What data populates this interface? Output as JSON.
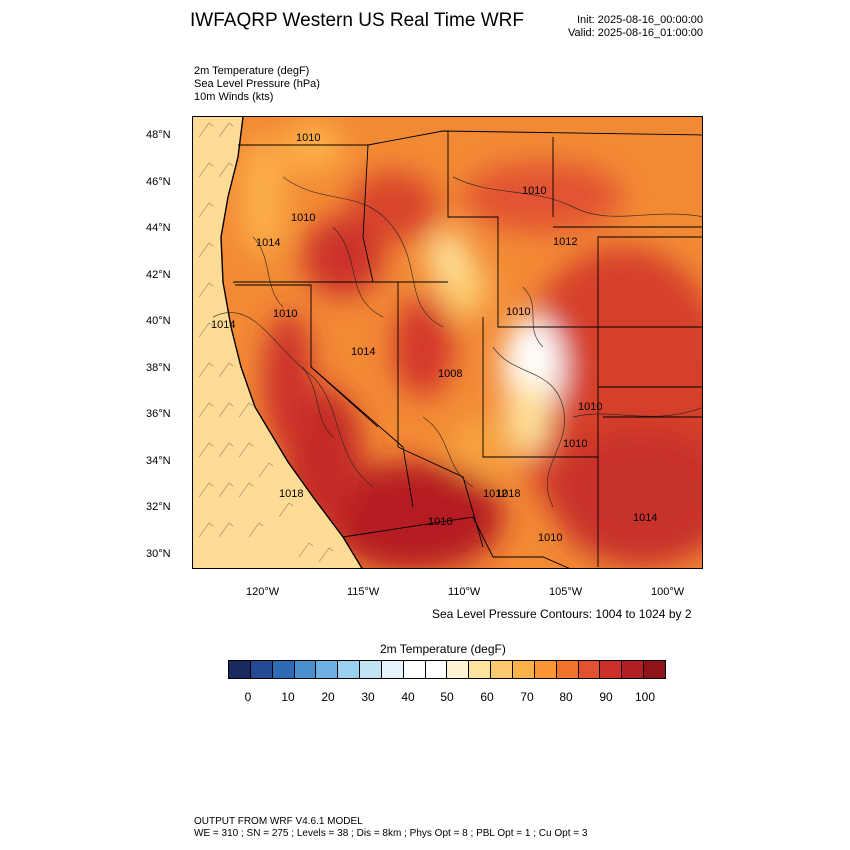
{
  "header": {
    "title": "IWFAQRP Western US Real Time WRF",
    "init": "Init: 2025-08-16_00:00:00",
    "valid": "Valid: 2025-08-16_01:00:00"
  },
  "fields": [
    "2m Temperature   (degF)",
    "Sea Level Pressure   (hPa)",
    "10m Winds   (kts)"
  ],
  "map": {
    "lat_labels": [
      "48°N",
      "46°N",
      "44°N",
      "42°N",
      "40°N",
      "38°N",
      "36°N",
      "34°N",
      "32°N",
      "30°N"
    ],
    "lon_labels": [
      "120°W",
      "115°W",
      "110°W",
      "105°W",
      "100°W"
    ],
    "isobar_labels": [
      "1010",
      "1010",
      "1010",
      "1014",
      "1014",
      "1010",
      "1014",
      "1010",
      "1008",
      "1010",
      "1018",
      "1012",
      "1010",
      "1018",
      "1010",
      "1010",
      "1014",
      "1012"
    ],
    "contour_note": "Sea Level Pressure Contours: 1004 to 1024 by 2"
  },
  "colorbar": {
    "title": "2m Temperature  (degF)",
    "labels": [
      "0",
      "10",
      "20",
      "30",
      "40",
      "50",
      "60",
      "70",
      "80",
      "90",
      "100"
    ],
    "colors": [
      "#182a5e",
      "#234a92",
      "#2f6bb4",
      "#4a90cd",
      "#6fb1e2",
      "#9ad0f0",
      "#c4e4f6",
      "#e6f3fb",
      "#ffffff",
      "#ffffff",
      "#fff4d2",
      "#fee39c",
      "#fdcb6e",
      "#fdb14a",
      "#fb9535",
      "#f2742c",
      "#e25230",
      "#cc3029",
      "#b11e23",
      "#8f1418"
    ]
  },
  "footer": {
    "line1": "OUTPUT FROM WRF V4.6.1 MODEL",
    "line2": "WE = 310 ; SN = 275 ; Levels = 38 ; Dis = 8km ; Phys Opt = 8 ; PBL Opt = 1 ; Cu Opt = 3"
  }
}
